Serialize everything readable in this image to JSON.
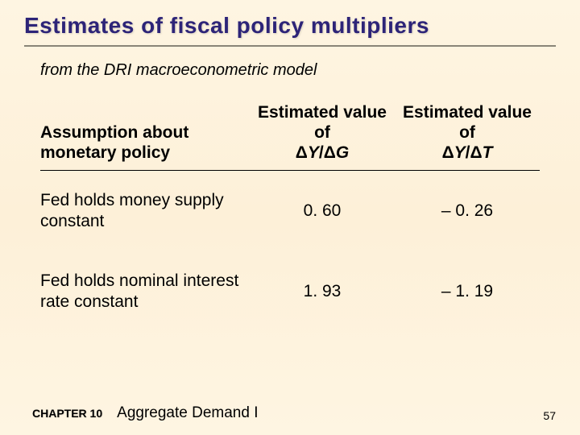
{
  "title": "Estimates of fiscal policy multipliers",
  "subtitle": "from the DRI macroeconometric model",
  "table": {
    "header": {
      "assumption": "Assumption about monetary policy",
      "col1_top": "Estimated value of",
      "col1_ratio_a": "Y",
      "col1_ratio_b": "G",
      "col2_top": "Estimated value of",
      "col2_ratio_a": "Y",
      "col2_ratio_b": "T"
    },
    "rows": [
      {
        "assumption": "Fed holds money supply constant",
        "v1": "0. 60",
        "v2": "– 0. 26"
      },
      {
        "assumption": "Fed holds nominal interest rate constant",
        "v1": "1. 93",
        "v2": "– 1. 19"
      }
    ]
  },
  "footer": {
    "chapter": "CHAPTER 10",
    "chapter_title": "Aggregate Demand I",
    "page": "57"
  }
}
